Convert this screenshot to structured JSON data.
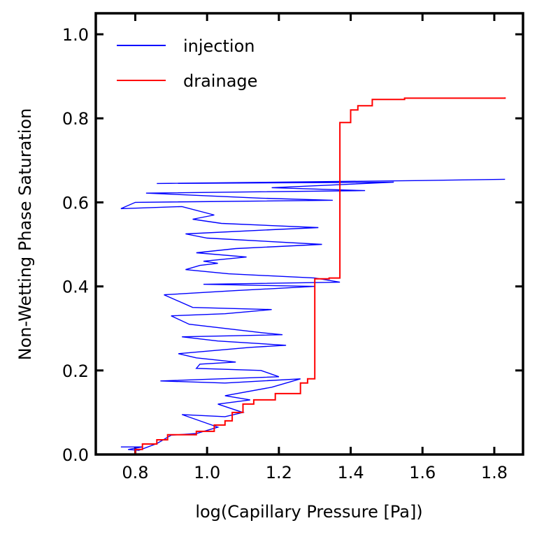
{
  "chart_data": {
    "type": "line",
    "title": "",
    "xlabel": "log(Capillary Pressure [Pa])",
    "ylabel": "Non-Wetting Phase Saturation",
    "xlim": [
      0.69,
      1.88
    ],
    "ylim": [
      0.0,
      1.05
    ],
    "x_ticks": [
      0.8,
      1.0,
      1.2,
      1.4,
      1.6,
      1.8
    ],
    "y_ticks": [
      0.0,
      0.2,
      0.4,
      0.6,
      0.8,
      1.0
    ],
    "x_tick_labels": [
      "0.8",
      "1.0",
      "1.2",
      "1.4",
      "1.6",
      "1.8"
    ],
    "y_tick_labels": [
      "0.0",
      "0.2",
      "0.4",
      "0.6",
      "0.8",
      "1.0"
    ],
    "grid": false,
    "legend_position": "top-left",
    "series": [
      {
        "name": "injection",
        "color": "#0000ff",
        "step": false,
        "points": [
          [
            0.76,
            0.018
          ],
          [
            0.82,
            0.018
          ],
          [
            0.78,
            0.012
          ],
          [
            0.81,
            0.01
          ],
          [
            0.86,
            0.026
          ],
          [
            0.9,
            0.046
          ],
          [
            0.97,
            0.05
          ],
          [
            1.03,
            0.065
          ],
          [
            0.93,
            0.095
          ],
          [
            1.05,
            0.09
          ],
          [
            1.1,
            0.1
          ],
          [
            1.03,
            0.12
          ],
          [
            1.12,
            0.13
          ],
          [
            1.05,
            0.14
          ],
          [
            1.18,
            0.16
          ],
          [
            1.26,
            0.18
          ],
          [
            1.05,
            0.17
          ],
          [
            0.87,
            0.175
          ],
          [
            1.2,
            0.185
          ],
          [
            1.15,
            0.2
          ],
          [
            0.97,
            0.205
          ],
          [
            0.98,
            0.215
          ],
          [
            1.08,
            0.22
          ],
          [
            0.97,
            0.23
          ],
          [
            0.92,
            0.24
          ],
          [
            1.12,
            0.255
          ],
          [
            1.22,
            0.26
          ],
          [
            1.03,
            0.27
          ],
          [
            0.93,
            0.28
          ],
          [
            1.21,
            0.285
          ],
          [
            1.15,
            0.29
          ],
          [
            0.95,
            0.31
          ],
          [
            0.9,
            0.33
          ],
          [
            1.05,
            0.335
          ],
          [
            1.18,
            0.345
          ],
          [
            0.96,
            0.35
          ],
          [
            0.88,
            0.38
          ],
          [
            1.08,
            0.39
          ],
          [
            1.3,
            0.4
          ],
          [
            0.99,
            0.405
          ],
          [
            1.37,
            0.41
          ],
          [
            1.3,
            0.42
          ],
          [
            1.06,
            0.43
          ],
          [
            0.94,
            0.44
          ],
          [
            0.98,
            0.45
          ],
          [
            1.03,
            0.455
          ],
          [
            0.99,
            0.46
          ],
          [
            1.11,
            0.47
          ],
          [
            0.97,
            0.48
          ],
          [
            1.08,
            0.49
          ],
          [
            1.32,
            0.5
          ],
          [
            1.0,
            0.515
          ],
          [
            0.94,
            0.525
          ],
          [
            1.18,
            0.535
          ],
          [
            1.31,
            0.54
          ],
          [
            1.04,
            0.55
          ],
          [
            0.96,
            0.56
          ],
          [
            1.02,
            0.57
          ],
          [
            0.93,
            0.59
          ],
          [
            0.76,
            0.585
          ],
          [
            0.8,
            0.6
          ],
          [
            1.35,
            0.605
          ],
          [
            1.15,
            0.61
          ],
          [
            0.83,
            0.622
          ],
          [
            1.44,
            0.628
          ],
          [
            1.18,
            0.635
          ],
          [
            1.52,
            0.648
          ],
          [
            0.86,
            0.645
          ],
          [
            1.6,
            0.652
          ],
          [
            1.83,
            0.655
          ]
        ]
      },
      {
        "name": "drainage",
        "color": "#ff0000",
        "step": true,
        "points": [
          [
            0.79,
            0.0
          ],
          [
            0.8,
            0.012
          ],
          [
            0.82,
            0.025
          ],
          [
            0.86,
            0.035
          ],
          [
            0.89,
            0.047
          ],
          [
            0.97,
            0.055
          ],
          [
            1.02,
            0.07
          ],
          [
            1.05,
            0.08
          ],
          [
            1.07,
            0.1
          ],
          [
            1.1,
            0.12
          ],
          [
            1.13,
            0.13
          ],
          [
            1.19,
            0.145
          ],
          [
            1.26,
            0.17
          ],
          [
            1.28,
            0.18
          ],
          [
            1.3,
            0.418
          ],
          [
            1.34,
            0.42
          ],
          [
            1.37,
            0.79
          ],
          [
            1.4,
            0.82
          ],
          [
            1.42,
            0.83
          ],
          [
            1.46,
            0.845
          ],
          [
            1.55,
            0.848
          ],
          [
            1.83,
            0.85
          ]
        ]
      }
    ]
  }
}
